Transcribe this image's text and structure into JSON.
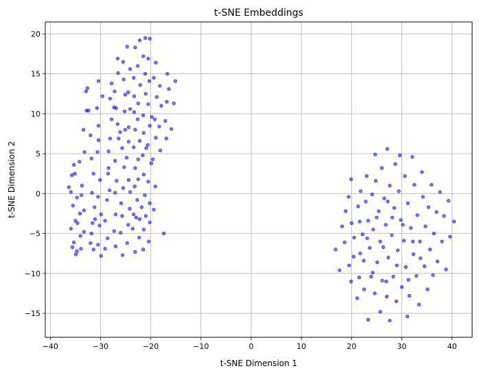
{
  "chart_data": {
    "type": "scatter",
    "title": "t-SNE Embeddings",
    "xlabel": "t-SNE Dimension 1",
    "ylabel": "t-SNE Dimension 2",
    "xlim": [
      -41,
      44
    ],
    "ylim": [
      -18,
      21.5
    ],
    "xticks": [
      -40,
      -30,
      -20,
      -10,
      0,
      10,
      20,
      30,
      40
    ],
    "yticks": [
      -15,
      -10,
      -5,
      0,
      5,
      10,
      15,
      20
    ],
    "xtick_labels": [
      "−40",
      "−30",
      "−20",
      "−10",
      "0",
      "10",
      "20",
      "30",
      "40"
    ],
    "ytick_labels": [
      "−15",
      "−10",
      "−5",
      "0",
      "5",
      "10",
      "15",
      "20"
    ],
    "grid": true,
    "marker_color": "#0000ff",
    "marker_opacity": 0.55,
    "series": [
      {
        "points": [
          [
            -36.3,
            0.8
          ],
          [
            -35.9,
            0.2
          ],
          [
            -35.7,
            2.3
          ],
          [
            -35.1,
            2.5
          ],
          [
            -35.3,
            3.6
          ],
          [
            -34.7,
            -0.5
          ],
          [
            -35.5,
            -1.5
          ],
          [
            -35.0,
            -3.4
          ],
          [
            -35.9,
            -4.4
          ],
          [
            -34.6,
            -3.7
          ],
          [
            -35.3,
            -6.1
          ],
          [
            -35.6,
            -6.7
          ],
          [
            -34.7,
            -7.2
          ],
          [
            -34.9,
            -7.6
          ],
          [
            -33.9,
            -6.9
          ],
          [
            -34.0,
            -5.3
          ],
          [
            -33.3,
            -4.8
          ],
          [
            -34.1,
            -2.5
          ],
          [
            -33.3,
            -2.1
          ],
          [
            -33.7,
            1.0
          ],
          [
            -34.2,
            4.0
          ],
          [
            -33.2,
            5.2
          ],
          [
            -33.4,
            8.0
          ],
          [
            -32.8,
            10.4
          ],
          [
            -32.9,
            12.8
          ],
          [
            -32.6,
            13.2
          ],
          [
            -32.0,
            7.3
          ],
          [
            -31.8,
            4.4
          ],
          [
            -31.4,
            2.5
          ],
          [
            -31.7,
            0.1
          ],
          [
            -31.2,
            -1.7
          ],
          [
            -31.6,
            -3.7
          ],
          [
            -31.8,
            -5.0
          ],
          [
            -32.0,
            -6.2
          ],
          [
            -31.4,
            -7.0
          ],
          [
            -30.5,
            -6.4
          ],
          [
            -30.2,
            -4.0
          ],
          [
            -29.9,
            -2.6
          ],
          [
            -30.5,
            -0.4
          ],
          [
            -30.1,
            1.7
          ],
          [
            -30.6,
            5.2
          ],
          [
            -30.4,
            6.7
          ],
          [
            -30.4,
            8.5
          ],
          [
            -30.7,
            10.7
          ],
          [
            -30.4,
            14.1
          ],
          [
            -29.9,
            -7.8
          ],
          [
            -29.1,
            -6.9
          ],
          [
            -28.6,
            -5.6
          ],
          [
            -29.1,
            -3.4
          ],
          [
            -28.7,
            -0.8
          ],
          [
            -28.2,
            0.4
          ],
          [
            -28.5,
            2.5
          ],
          [
            -28.4,
            5.3
          ],
          [
            -28.1,
            6.9
          ],
          [
            -27.8,
            9.3
          ],
          [
            -28.1,
            11.9
          ],
          [
            -27.8,
            13.8
          ],
          [
            -27.0,
            -6.6
          ],
          [
            -27.3,
            -4.7
          ],
          [
            -27.0,
            -2.6
          ],
          [
            -27.1,
            0.1
          ],
          [
            -26.8,
            1.6
          ],
          [
            -27.1,
            4.1
          ],
          [
            -26.4,
            6.9
          ],
          [
            -26.6,
            8.7
          ],
          [
            -26.9,
            10.7
          ],
          [
            -27.2,
            12.8
          ],
          [
            -26.5,
            15.1
          ],
          [
            -26.6,
            16.9
          ],
          [
            -25.6,
            -7.7
          ],
          [
            -26.0,
            -4.9
          ],
          [
            -25.7,
            -2.8
          ],
          [
            -25.9,
            -1.2
          ],
          [
            -25.5,
            0.7
          ],
          [
            -25.3,
            3.3
          ],
          [
            -25.7,
            5.7
          ],
          [
            -25.1,
            8.0
          ],
          [
            -25.2,
            10.3
          ],
          [
            -25.1,
            12.4
          ],
          [
            -25.4,
            14.3
          ],
          [
            -25.5,
            16.5
          ],
          [
            -24.7,
            -6.2
          ],
          [
            -24.5,
            -3.9
          ],
          [
            -24.2,
            -1.9
          ],
          [
            -24.1,
            0.2
          ],
          [
            -24.4,
            1.7
          ],
          [
            -24.8,
            4.5
          ],
          [
            -24.4,
            6.5
          ],
          [
            -24.4,
            8.3
          ],
          [
            -24.1,
            10.6
          ],
          [
            -24.5,
            12.7
          ],
          [
            -24.1,
            15.6
          ],
          [
            -23.1,
            -7.3
          ],
          [
            -23.6,
            -4.4
          ],
          [
            -23.4,
            -2.6
          ],
          [
            -23.2,
            0.9
          ],
          [
            -23.1,
            3.2
          ],
          [
            -23.4,
            5.8
          ],
          [
            -23.1,
            8.0
          ],
          [
            -23.3,
            10.2
          ],
          [
            -23.3,
            12.2
          ],
          [
            -23.4,
            14.5
          ],
          [
            -23.1,
            18.3
          ],
          [
            -22.3,
            -5.5
          ],
          [
            -22.2,
            -3.2
          ],
          [
            -22.7,
            -0.8
          ],
          [
            -22.5,
            1.8
          ],
          [
            -22.5,
            4.3
          ],
          [
            -22.2,
            6.6
          ],
          [
            -22.6,
            9.3
          ],
          [
            -22.5,
            11.3
          ],
          [
            -22.1,
            13.6
          ],
          [
            -22.6,
            16.0
          ],
          [
            -22.2,
            19.2
          ],
          [
            -21.5,
            -7.0
          ],
          [
            -21.4,
            -4.5
          ],
          [
            -21.0,
            -2.8
          ],
          [
            -21.2,
            -0.2
          ],
          [
            -21.4,
            2.4
          ],
          [
            -21.6,
            4.8
          ],
          [
            -21.4,
            7.6
          ],
          [
            -21.5,
            9.8
          ],
          [
            -21.0,
            12.5
          ],
          [
            -21.1,
            15.0
          ],
          [
            -21.5,
            17.2
          ],
          [
            -21.1,
            19.5
          ],
          [
            -20.4,
            -6.0
          ],
          [
            -20.2,
            -3.6
          ],
          [
            -20.2,
            -1.2
          ],
          [
            -20.5,
            1.5
          ],
          [
            -19.9,
            3.8
          ],
          [
            -20.6,
            6.1
          ],
          [
            -20.2,
            8.5
          ],
          [
            -20.5,
            11.2
          ],
          [
            -20.3,
            14.1
          ],
          [
            -20.5,
            16.9
          ],
          [
            -20.2,
            19.4
          ],
          [
            -19.4,
            -2.0
          ],
          [
            -19.1,
            0.9
          ],
          [
            -19.6,
            4.3
          ],
          [
            -19.0,
            7.0
          ],
          [
            -19.2,
            9.3
          ],
          [
            -18.8,
            12.1
          ],
          [
            -19.4,
            14.5
          ],
          [
            -19.0,
            16.4
          ],
          [
            -18.1,
            5.4
          ],
          [
            -18.3,
            8.4
          ],
          [
            -17.9,
            11.0
          ],
          [
            -18.2,
            13.5
          ],
          [
            -16.9,
            6.9
          ],
          [
            -17.1,
            9.1
          ],
          [
            -16.8,
            11.5
          ],
          [
            -16.4,
            13.1
          ],
          [
            -16.7,
            15.0
          ],
          [
            -15.9,
            8.1
          ],
          [
            -15.4,
            11.3
          ],
          [
            -15.1,
            14.1
          ],
          [
            -17.4,
            -5.0
          ],
          [
            -32.4,
            10.4
          ],
          [
            -28.4,
            3.2
          ],
          [
            -33.8,
            -0.2
          ],
          [
            -29.6,
            12.2
          ],
          [
            -26.1,
            7.7
          ],
          [
            -21.8,
            -1.7
          ],
          [
            -22.9,
            -3.0
          ],
          [
            -31.1,
            -3.2
          ],
          [
            -20.9,
            5.7
          ],
          [
            -24.7,
            18.4
          ],
          [
            -27.3,
            10.8
          ],
          [
            -19.8,
            9.6
          ]
        ]
      },
      {
        "points": [
          [
            16.8,
            -7.0
          ],
          [
            17.6,
            -9.6
          ],
          [
            18.1,
            -4.1
          ],
          [
            18.8,
            -2.2
          ],
          [
            18.6,
            -6.1
          ],
          [
            19.5,
            -9.0
          ],
          [
            19.4,
            -0.4
          ],
          [
            19.9,
            1.8
          ],
          [
            20.0,
            -3.7
          ],
          [
            19.9,
            -11.0
          ],
          [
            20.5,
            -5.5
          ],
          [
            20.4,
            -7.9
          ],
          [
            21.3,
            -1.6
          ],
          [
            21.1,
            -13.1
          ],
          [
            21.5,
            -10.5
          ],
          [
            21.6,
            -3.5
          ],
          [
            21.8,
            0.3
          ],
          [
            22.2,
            -5.1
          ],
          [
            22.4,
            -8.4
          ],
          [
            22.5,
            -12.0
          ],
          [
            22.8,
            -1.0
          ],
          [
            23.0,
            2.2
          ],
          [
            23.3,
            -3.4
          ],
          [
            23.3,
            -15.8
          ],
          [
            23.6,
            -6.8
          ],
          [
            23.9,
            -10.4
          ],
          [
            24.1,
            -0.1
          ],
          [
            24.3,
            -4.5
          ],
          [
            24.6,
            -12.5
          ],
          [
            24.7,
            4.9
          ],
          [
            24.8,
            1.6
          ],
          [
            25.1,
            -8.6
          ],
          [
            25.4,
            -2.2
          ],
          [
            25.7,
            -14.8
          ],
          [
            25.7,
            -6.0
          ],
          [
            26.0,
            3.2
          ],
          [
            26.1,
            -10.9
          ],
          [
            26.5,
            -0.6
          ],
          [
            26.8,
            -3.9
          ],
          [
            27.0,
            -12.9
          ],
          [
            27.1,
            5.6
          ],
          [
            27.3,
            -8.0
          ],
          [
            27.6,
            1.0
          ],
          [
            27.6,
            -15.9
          ],
          [
            28.0,
            -5.2
          ],
          [
            28.3,
            -10.4
          ],
          [
            28.5,
            -1.8
          ],
          [
            28.7,
            3.7
          ],
          [
            28.9,
            -13.5
          ],
          [
            29.2,
            -7.1
          ],
          [
            29.4,
            0.3
          ],
          [
            29.6,
            4.8
          ],
          [
            29.8,
            -3.3
          ],
          [
            30.0,
            -11.7
          ],
          [
            30.4,
            -5.9
          ],
          [
            30.6,
            2.2
          ],
          [
            30.8,
            -9.2
          ],
          [
            31.1,
            -15.4
          ],
          [
            31.2,
            -1.2
          ],
          [
            31.5,
            -12.8
          ],
          [
            31.8,
            -4.3
          ],
          [
            32.1,
            4.6
          ],
          [
            32.3,
            -7.6
          ],
          [
            32.5,
            1.1
          ],
          [
            32.9,
            -10.3
          ],
          [
            33.1,
            -2.7
          ],
          [
            33.4,
            -13.9
          ],
          [
            33.6,
            -6.0
          ],
          [
            34.0,
            2.7
          ],
          [
            34.2,
            -0.4
          ],
          [
            34.5,
            -9.1
          ],
          [
            34.7,
            -4.1
          ],
          [
            35.1,
            -12.0
          ],
          [
            35.3,
            -1.7
          ],
          [
            35.6,
            -7.0
          ],
          [
            35.9,
            1.1
          ],
          [
            36.2,
            -10.2
          ],
          [
            36.4,
            -5.0
          ],
          [
            36.9,
            -2.3
          ],
          [
            37.1,
            -8.5
          ],
          [
            37.6,
            0.2
          ],
          [
            38.0,
            -6.0
          ],
          [
            38.4,
            -2.8
          ],
          [
            38.8,
            -9.5
          ],
          [
            39.3,
            -0.9
          ],
          [
            39.6,
            -5.4
          ],
          [
            40.4,
            -3.5
          ],
          [
            21.7,
            -7.5
          ],
          [
            23.1,
            -5.6
          ],
          [
            25.0,
            -3.0
          ],
          [
            26.3,
            -6.7
          ],
          [
            28.1,
            -3.0
          ],
          [
            29.0,
            -9.0
          ],
          [
            30.2,
            -3.9
          ],
          [
            32.2,
            -6.0
          ],
          [
            33.7,
            -8.1
          ],
          [
            27.2,
            -1.0
          ],
          [
            24.2,
            -9.9
          ],
          [
            26.9,
            -11.0
          ],
          [
            31.3,
            -10.8
          ]
        ]
      }
    ]
  }
}
